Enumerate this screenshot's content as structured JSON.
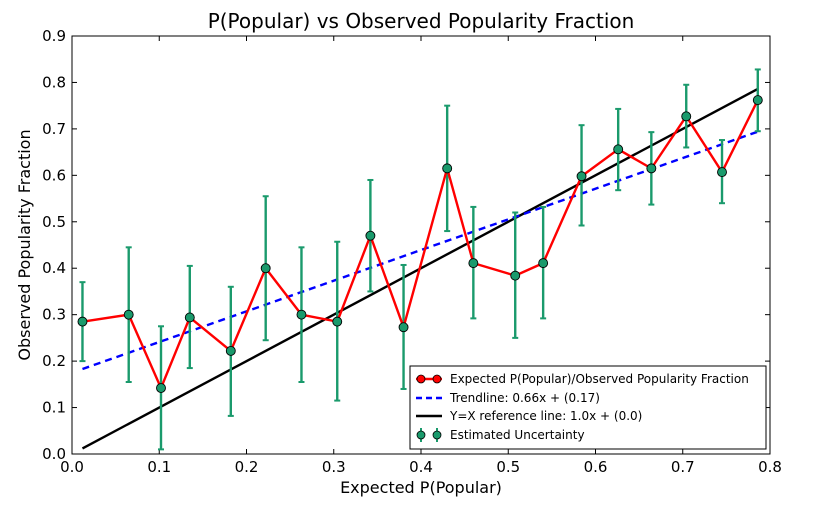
{
  "chart_data": {
    "type": "line",
    "title": "P(Popular) vs Observed Popularity Fraction",
    "xlabel": "Expected P(Popular)",
    "ylabel": "Observed Popularity Fraction",
    "xlim": [
      0.0,
      0.8
    ],
    "ylim": [
      0.0,
      0.9
    ],
    "x_ticks": [
      "0.0",
      "0.1",
      "0.2",
      "0.3",
      "0.4",
      "0.5",
      "0.6",
      "0.7",
      "0.8"
    ],
    "y_ticks": [
      "0.0",
      "0.1",
      "0.2",
      "0.3",
      "0.4",
      "0.5",
      "0.6",
      "0.7",
      "0.8",
      "0.9"
    ],
    "grid": false,
    "legend_position": "lower-right",
    "series": [
      {
        "name": "Expected P(Popular)/Observed Popularity Fraction",
        "style": "line-with-markers",
        "color": "#ff0000",
        "marker_color": "#1a9a6c",
        "x": [
          0.012,
          0.065,
          0.102,
          0.135,
          0.182,
          0.222,
          0.263,
          0.304,
          0.342,
          0.38,
          0.43,
          0.46,
          0.508,
          0.54,
          0.584,
          0.626,
          0.664,
          0.704,
          0.745,
          0.786
        ],
        "y": [
          0.285,
          0.3,
          0.142,
          0.294,
          0.222,
          0.4,
          0.3,
          0.285,
          0.47,
          0.273,
          0.615,
          0.411,
          0.384,
          0.411,
          0.598,
          0.656,
          0.615,
          0.727,
          0.607,
          0.762
        ]
      },
      {
        "name": "Trendline: 0.66x + (0.17)",
        "style": "dashed",
        "color": "#0000ff",
        "x": [
          0.012,
          0.786
        ],
        "y": [
          0.183,
          0.694
        ]
      },
      {
        "name": "Y=X reference line: 1.0x + (0.0)",
        "style": "solid",
        "color": "#000000",
        "x": [
          0.012,
          0.786
        ],
        "y": [
          0.012,
          0.786
        ]
      },
      {
        "name": "Estimated Uncertainty",
        "style": "errorbar",
        "color": "#1a9a6c",
        "x": [
          0.012,
          0.065,
          0.102,
          0.135,
          0.182,
          0.222,
          0.263,
          0.304,
          0.342,
          0.38,
          0.43,
          0.46,
          0.508,
          0.54,
          0.584,
          0.626,
          0.664,
          0.704,
          0.745,
          0.786
        ],
        "y": [
          0.285,
          0.3,
          0.142,
          0.294,
          0.222,
          0.4,
          0.3,
          0.285,
          0.47,
          0.273,
          0.615,
          0.411,
          0.384,
          0.411,
          0.598,
          0.656,
          0.615,
          0.727,
          0.607,
          0.762
        ],
        "err_low": [
          0.2,
          0.155,
          0.01,
          0.185,
          0.082,
          0.245,
          0.155,
          0.115,
          0.35,
          0.14,
          0.48,
          0.292,
          0.25,
          0.292,
          0.492,
          0.568,
          0.537,
          0.66,
          0.54,
          0.695
        ],
        "err_high": [
          0.37,
          0.445,
          0.275,
          0.405,
          0.36,
          0.555,
          0.445,
          0.457,
          0.59,
          0.407,
          0.75,
          0.532,
          0.52,
          0.532,
          0.708,
          0.743,
          0.693,
          0.795,
          0.676,
          0.828
        ]
      }
    ]
  }
}
